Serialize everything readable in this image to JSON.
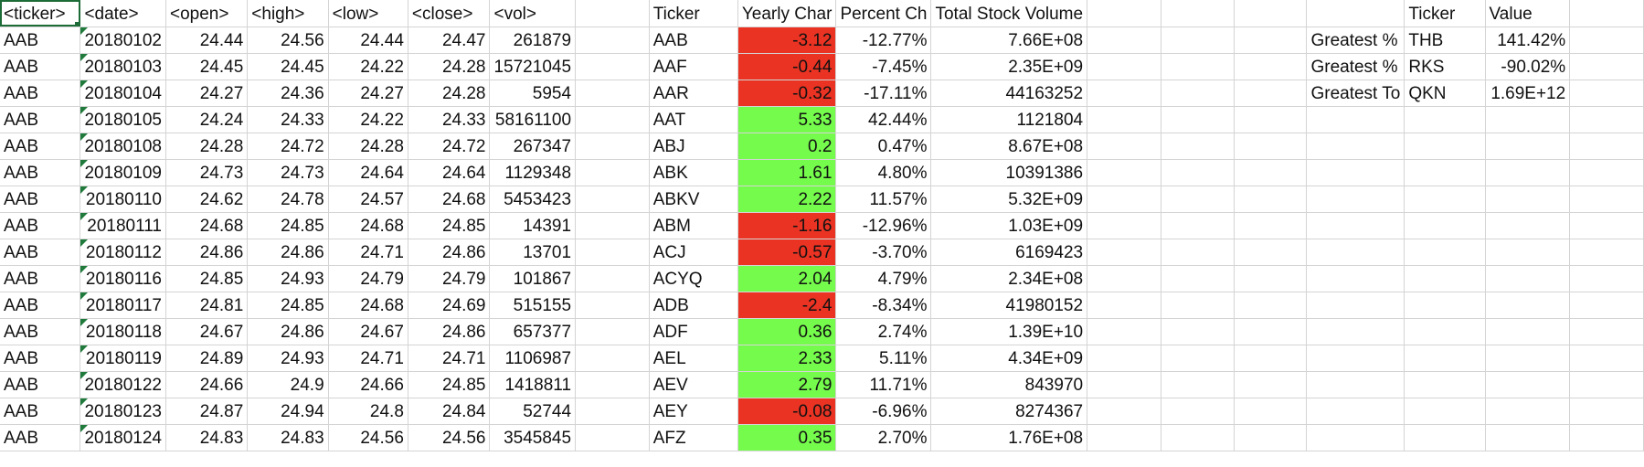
{
  "colors": {
    "negative_fill": "#ea3323",
    "positive_fill": "#75fb4c",
    "grid_line": "#d4d4d4",
    "selection": "#1d6b37"
  },
  "headers": {
    "ticker": "<ticker>",
    "date": "<date>",
    "open": "<open>",
    "high": "<high>",
    "low": "<low>",
    "close": "<close>",
    "vol": "<vol>",
    "summary_ticker": "Ticker",
    "yearly_change": "Yearly Char",
    "percent_change": "Percent Ch",
    "total_volume": "Total Stock Volume",
    "greatest_ticker": "Ticker",
    "greatest_value": "Value"
  },
  "rows": [
    {
      "ticker": "AAB",
      "date": "20180102",
      "open": "24.44",
      "high": "24.56",
      "low": "24.44",
      "close": "24.47",
      "vol": "261879"
    },
    {
      "ticker": "AAB",
      "date": "20180103",
      "open": "24.45",
      "high": "24.45",
      "low": "24.22",
      "close": "24.28",
      "vol": "15721045"
    },
    {
      "ticker": "AAB",
      "date": "20180104",
      "open": "24.27",
      "high": "24.36",
      "low": "24.27",
      "close": "24.28",
      "vol": "5954"
    },
    {
      "ticker": "AAB",
      "date": "20180105",
      "open": "24.24",
      "high": "24.33",
      "low": "24.22",
      "close": "24.33",
      "vol": "58161100"
    },
    {
      "ticker": "AAB",
      "date": "20180108",
      "open": "24.28",
      "high": "24.72",
      "low": "24.28",
      "close": "24.72",
      "vol": "267347"
    },
    {
      "ticker": "AAB",
      "date": "20180109",
      "open": "24.73",
      "high": "24.73",
      "low": "24.64",
      "close": "24.64",
      "vol": "1129348"
    },
    {
      "ticker": "AAB",
      "date": "20180110",
      "open": "24.62",
      "high": "24.78",
      "low": "24.57",
      "close": "24.68",
      "vol": "5453423"
    },
    {
      "ticker": "AAB",
      "date": "20180111",
      "open": "24.68",
      "high": "24.85",
      "low": "24.68",
      "close": "24.85",
      "vol": "14391"
    },
    {
      "ticker": "AAB",
      "date": "20180112",
      "open": "24.86",
      "high": "24.86",
      "low": "24.71",
      "close": "24.86",
      "vol": "13701"
    },
    {
      "ticker": "AAB",
      "date": "20180116",
      "open": "24.85",
      "high": "24.93",
      "low": "24.79",
      "close": "24.79",
      "vol": "101867"
    },
    {
      "ticker": "AAB",
      "date": "20180117",
      "open": "24.81",
      "high": "24.85",
      "low": "24.68",
      "close": "24.69",
      "vol": "515155"
    },
    {
      "ticker": "AAB",
      "date": "20180118",
      "open": "24.67",
      "high": "24.86",
      "low": "24.67",
      "close": "24.86",
      "vol": "657377"
    },
    {
      "ticker": "AAB",
      "date": "20180119",
      "open": "24.89",
      "high": "24.93",
      "low": "24.71",
      "close": "24.71",
      "vol": "1106987"
    },
    {
      "ticker": "AAB",
      "date": "20180122",
      "open": "24.66",
      "high": "24.9",
      "low": "24.66",
      "close": "24.85",
      "vol": "1418811"
    },
    {
      "ticker": "AAB",
      "date": "20180123",
      "open": "24.87",
      "high": "24.94",
      "low": "24.8",
      "close": "24.84",
      "vol": "52744"
    },
    {
      "ticker": "AAB",
      "date": "20180124",
      "open": "24.83",
      "high": "24.83",
      "low": "24.56",
      "close": "24.56",
      "vol": "3545845"
    }
  ],
  "summary": [
    {
      "ticker": "AAB",
      "yearly": "-3.12",
      "percent": "-12.77%",
      "volume": "7.66E+08",
      "sign": "neg"
    },
    {
      "ticker": "AAF",
      "yearly": "-0.44",
      "percent": "-7.45%",
      "volume": "2.35E+09",
      "sign": "neg"
    },
    {
      "ticker": "AAR",
      "yearly": "-0.32",
      "percent": "-17.11%",
      "volume": "44163252",
      "sign": "neg"
    },
    {
      "ticker": "AAT",
      "yearly": "5.33",
      "percent": "42.44%",
      "volume": "1121804",
      "sign": "pos"
    },
    {
      "ticker": "ABJ",
      "yearly": "0.2",
      "percent": "0.47%",
      "volume": "8.67E+08",
      "sign": "pos"
    },
    {
      "ticker": "ABK",
      "yearly": "1.61",
      "percent": "4.80%",
      "volume": "10391386",
      "sign": "pos"
    },
    {
      "ticker": "ABKV",
      "yearly": "2.22",
      "percent": "11.57%",
      "volume": "5.32E+09",
      "sign": "pos"
    },
    {
      "ticker": "ABM",
      "yearly": "-1.16",
      "percent": "-12.96%",
      "volume": "1.03E+09",
      "sign": "neg"
    },
    {
      "ticker": "ACJ",
      "yearly": "-0.57",
      "percent": "-3.70%",
      "volume": "6169423",
      "sign": "neg"
    },
    {
      "ticker": "ACYQ",
      "yearly": "2.04",
      "percent": "4.79%",
      "volume": "2.34E+08",
      "sign": "pos"
    },
    {
      "ticker": "ADB",
      "yearly": "-2.4",
      "percent": "-8.34%",
      "volume": "41980152",
      "sign": "neg"
    },
    {
      "ticker": "ADF",
      "yearly": "0.36",
      "percent": "2.74%",
      "volume": "1.39E+10",
      "sign": "pos"
    },
    {
      "ticker": "AEL",
      "yearly": "2.33",
      "percent": "5.11%",
      "volume": "4.34E+09",
      "sign": "pos"
    },
    {
      "ticker": "AEV",
      "yearly": "2.79",
      "percent": "11.71%",
      "volume": "843970",
      "sign": "pos"
    },
    {
      "ticker": "AEY",
      "yearly": "-0.08",
      "percent": "-6.96%",
      "volume": "8274367",
      "sign": "neg"
    },
    {
      "ticker": "AFZ",
      "yearly": "0.35",
      "percent": "2.70%",
      "volume": "1.76E+08",
      "sign": "pos"
    }
  ],
  "greatest": [
    {
      "label": "Greatest %",
      "ticker": "THB",
      "value": "141.42%"
    },
    {
      "label": "Greatest %",
      "ticker": "RKS",
      "value": "-90.02%"
    },
    {
      "label": "Greatest To",
      "ticker": "QKN",
      "value": "1.69E+12"
    }
  ]
}
